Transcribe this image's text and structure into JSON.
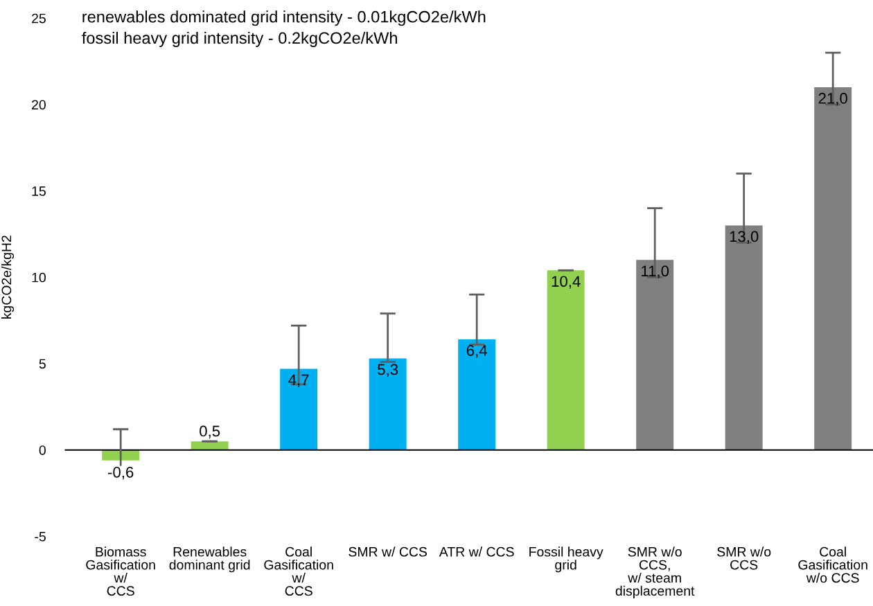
{
  "chart_data": {
    "type": "bar",
    "ylabel": "kgCO2e/kgH2",
    "annotations": [
      "renewables dominated grid intensity - 0.01kgCO2e/kWh",
      "fossil heavy grid intensity - 0.2kgCO2e/kWh"
    ],
    "categories": [
      "Biomass\nGasification\nw/\nCCS",
      "Renewables\ndominant grid",
      "Coal\nGasification\nw/\nCCS",
      "SMR w/ CCS",
      "ATR w/ CCS",
      "Fossil heavy\ngrid",
      "SMR w/o\nCCS,\nw/ steam\ndisplacement",
      "SMR w/o\nCCS",
      "Coal\nGasification\nw/o CCS"
    ],
    "values": [
      -0.6,
      0.5,
      4.7,
      5.3,
      6.4,
      10.4,
      11.0,
      13.0,
      21.0
    ],
    "colors": [
      "#92d050",
      "#92d050",
      "#00b0f0",
      "#00b0f0",
      "#00b0f0",
      "#92d050",
      "#808080",
      "#808080",
      "#808080"
    ],
    "errors": [
      [
        -1.3,
        1.2
      ],
      [
        0.5,
        0.5
      ],
      [
        3.8,
        7.2
      ],
      [
        5.1,
        7.9
      ],
      [
        6.1,
        9.0
      ],
      [
        10.4,
        10.4
      ],
      [
        10.0,
        14.0
      ],
      [
        12.0,
        16.0
      ],
      [
        20.0,
        23.0
      ]
    ],
    "value_labels": [
      "-0,6",
      "0,5",
      "4,7",
      "5,3",
      "6,4",
      "10,4",
      "11,0",
      "13,0",
      "21,0"
    ],
    "ylim": [
      -5,
      25
    ],
    "yticks": [
      -5,
      0,
      5,
      10,
      15,
      20,
      25
    ]
  }
}
